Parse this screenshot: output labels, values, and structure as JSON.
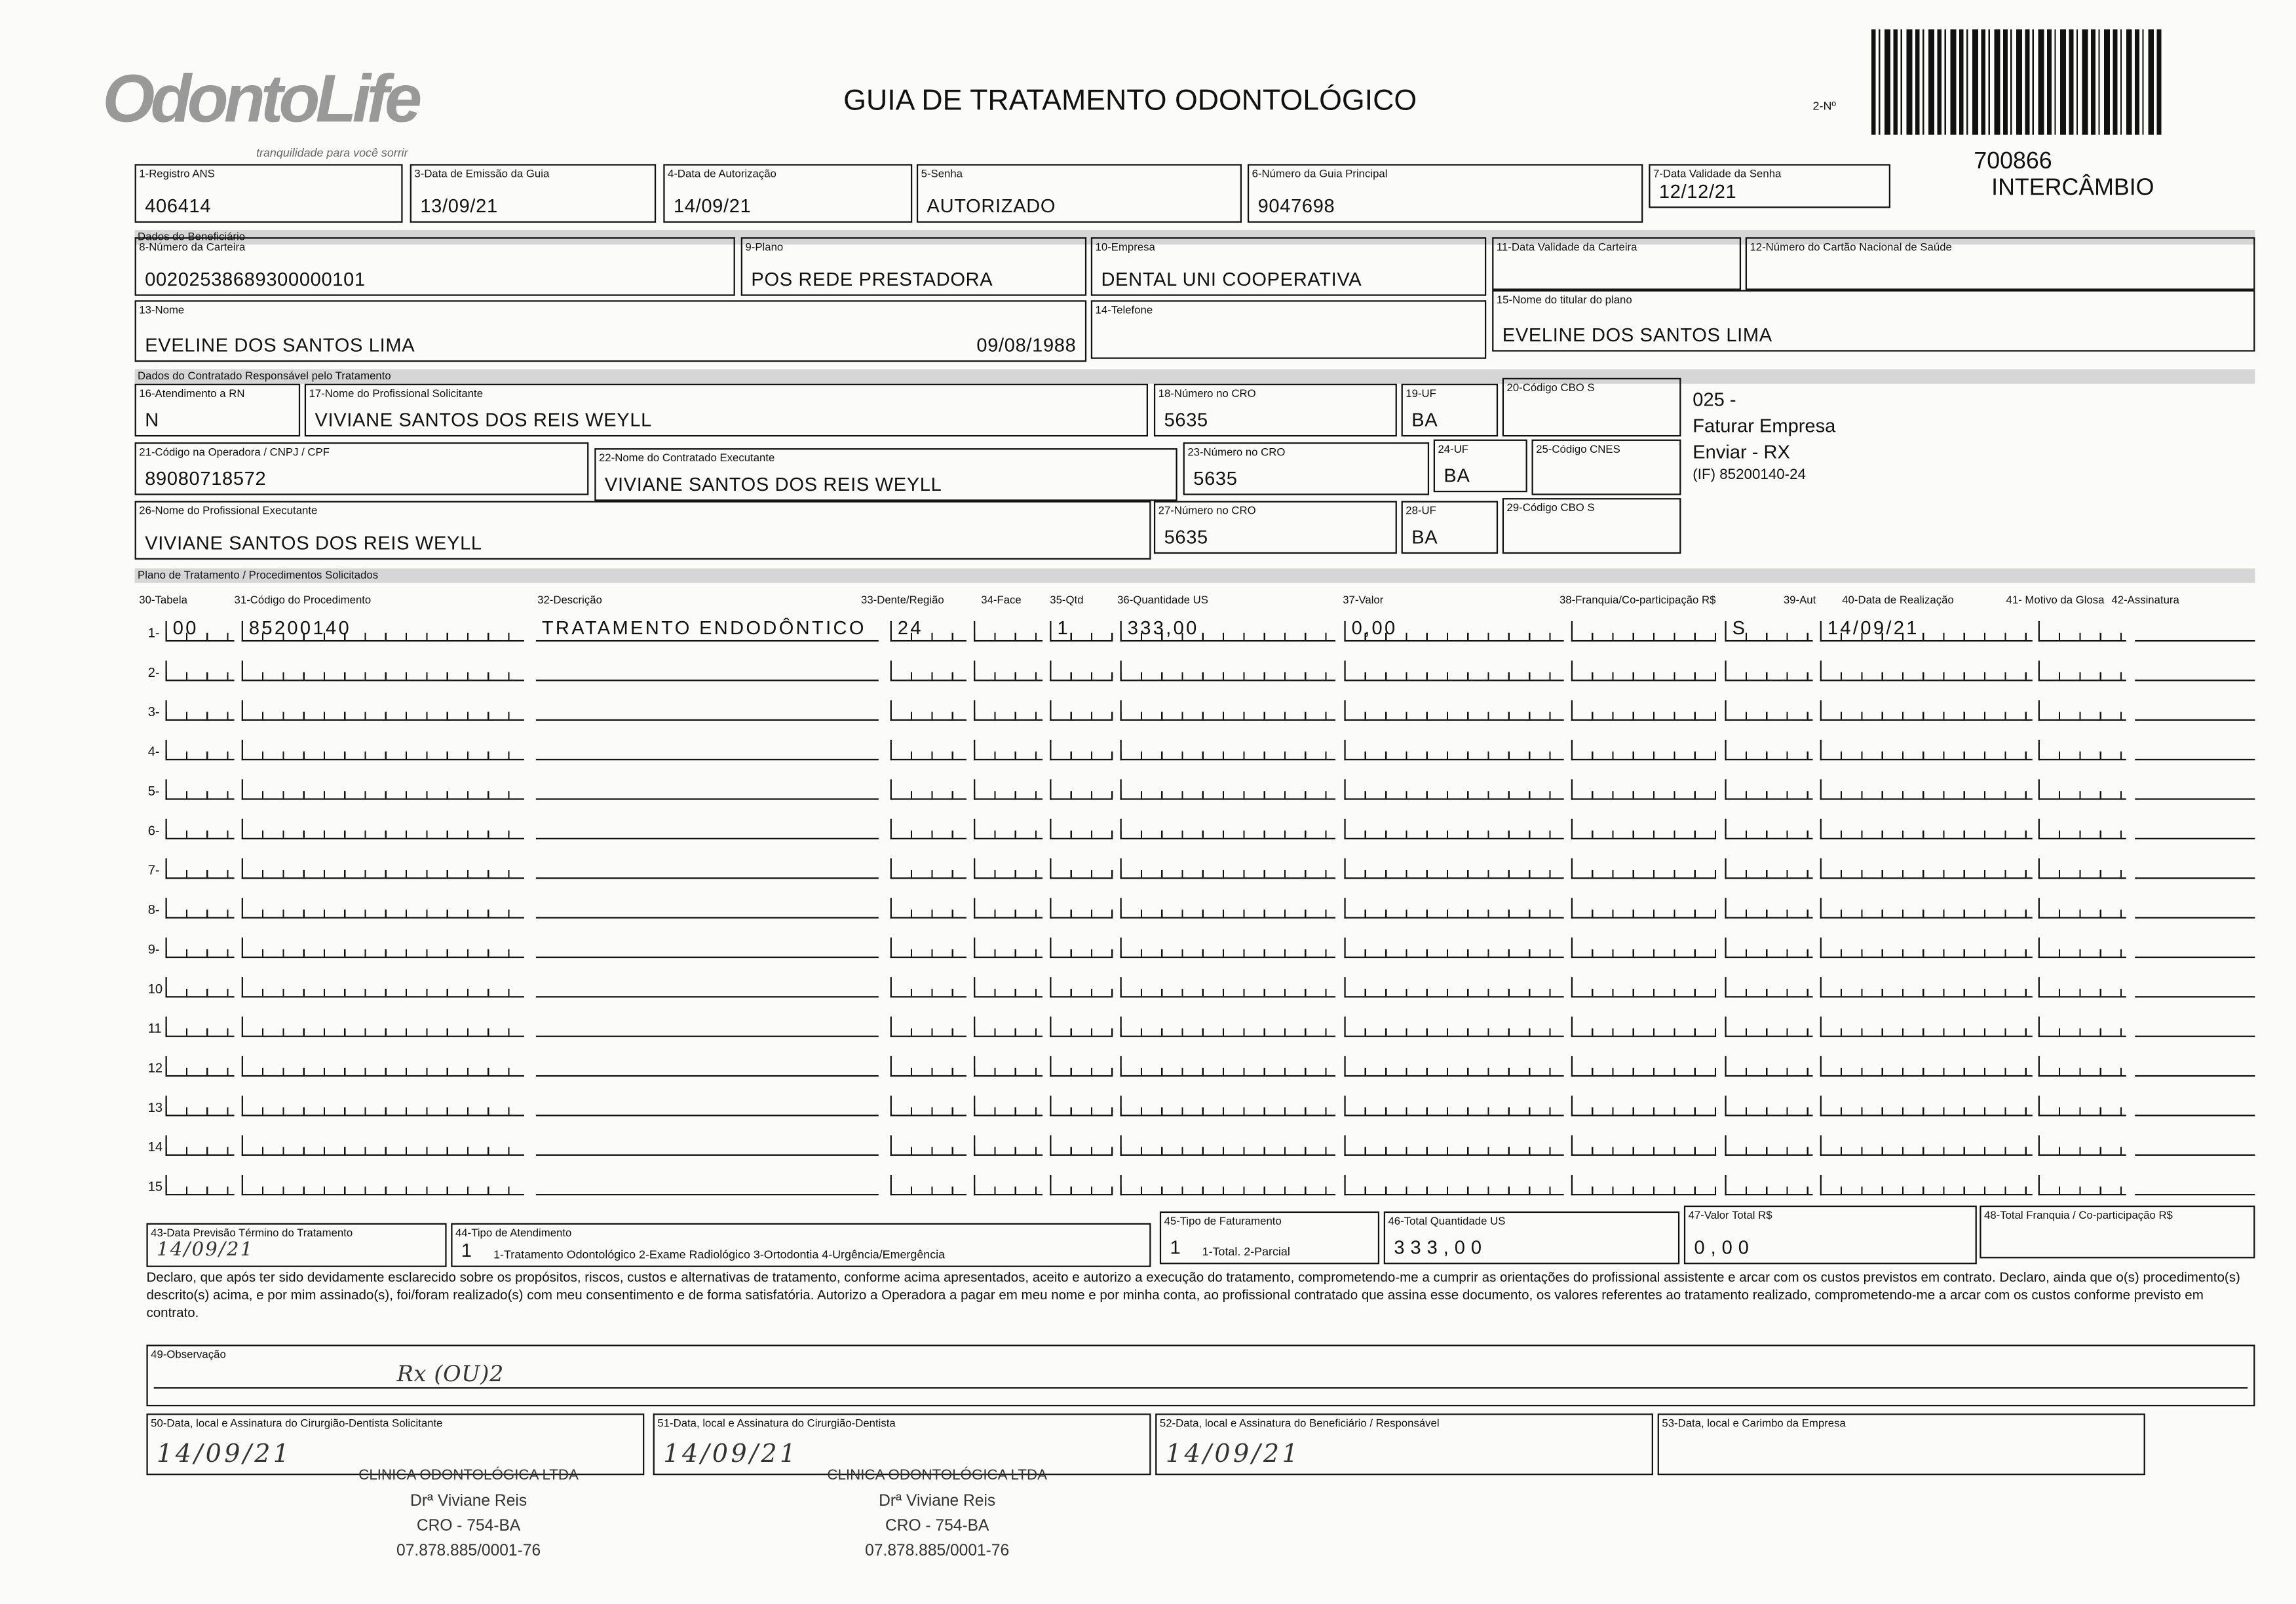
{
  "header": {
    "logo": "OdontoLife",
    "tagline": "tranquilidade para você sorrir",
    "title": "GUIA DE TRATAMENTO ODONTOLÓGICO",
    "number_label": "2-Nº",
    "code": "700866",
    "exchange": "INTERCÂMBIO"
  },
  "sections": [
    "Dados do Beneficiário",
    "Dados do Contratado Responsável pelo Tratamento",
    "Plano de Tratamento / Procedimentos Solicitados"
  ],
  "fields": [
    {
      "label": "1-Registro ANS",
      "value": "406414"
    },
    {
      "label": "3-Data de Emissão da Guia",
      "value": "13/09/21"
    },
    {
      "label": "4-Data de Autorização",
      "value": "14/09/21"
    },
    {
      "label": "5-Senha",
      "value": "AUTORIZADO"
    },
    {
      "label": "6-Número da Guia Principal",
      "value": "9047698"
    },
    {
      "label": "7-Data Validade da Senha",
      "value": "12/12/21"
    },
    {
      "label": "8-Número da Carteira",
      "value": "00202538689300000101"
    },
    {
      "label": "9-Plano",
      "value": "POS REDE PRESTADORA"
    },
    {
      "label": "10-Empresa",
      "value": "DENTAL UNI  COOPERATIVA"
    },
    {
      "label": "11-Data Validade da Carteira"
    },
    {
      "label": "12-Número do Cartão Nacional de Saúde"
    },
    {
      "label": "13-Nome",
      "value": "EVELINE DOS SANTOS LIMA",
      "extra": "09/08/1988"
    },
    {
      "label": "14-Telefone"
    },
    {
      "label": "15-Nome do titular do plano",
      "value": "EVELINE DOS SANTOS LIMA"
    },
    {
      "label": "16-Atendimento a RN",
      "value": "N"
    },
    {
      "label": "17-Nome do Profissional Solicitante",
      "value": "VIVIANE SANTOS DOS REIS WEYLL"
    },
    {
      "label": "18-Número no CRO",
      "value": "5635"
    },
    {
      "label": "19-UF",
      "value": "BA"
    },
    {
      "label": "20-Código CBO S"
    },
    {
      "label": "21-Código na Operadora / CNPJ / CPF",
      "value": "89080718572"
    },
    {
      "label": "22-Nome do Contratado Executante",
      "value": "VIVIANE SANTOS DOS REIS WEYLL"
    },
    {
      "label": "23-Número no CRO",
      "value": "5635"
    },
    {
      "label": "24-UF",
      "value": "BA"
    },
    {
      "label": "25-Código CNES"
    },
    {
      "label": "26-Nome do Profissional Executante",
      "value": "VIVIANE SANTOS DOS REIS WEYLL"
    },
    {
      "label": "27-Número no CRO",
      "value": "5635"
    },
    {
      "label": "28-UF",
      "value": "BA"
    },
    {
      "label": "29-Código CBO S"
    }
  ],
  "side_notes": [
    "025 -",
    "Faturar Empresa",
    "Enviar - RX",
    "(IF) 85200140-24"
  ],
  "procedures": {
    "columns": [
      "30-Tabela",
      "31-Código do Procedimento",
      "32-Descrição",
      "33-Dente/Região",
      "34-Face",
      "35-Qtd",
      "36-Quantidade US",
      "37-Valor",
      "38-Franquia/Co-participação R$",
      "39-Aut",
      "40-Data de Realização",
      "41- Motivo da Glosa",
      "42-Assinatura"
    ],
    "rows": [
      {
        "number": "1-",
        "cells": {
          "0": "00",
          "1": "85200140",
          "2": "TRATAMENTO ENDODÔNTICO",
          "3": "24",
          "5": "1",
          "6": "333,00",
          "7": "0,00",
          "9": "S",
          "10": "14/09/21"
        }
      },
      {
        "number": "2-"
      },
      {
        "number": "3-"
      },
      {
        "number": "4-"
      },
      {
        "number": "5-"
      },
      {
        "number": "6-"
      },
      {
        "number": "7-"
      },
      {
        "number": "8-"
      },
      {
        "number": "9-"
      },
      {
        "number": "10"
      },
      {
        "number": "11"
      },
      {
        "number": "12"
      },
      {
        "number": "13"
      },
      {
        "number": "14"
      },
      {
        "number": "15"
      }
    ]
  },
  "footer_fields": [
    {
      "label": "43-Data Previsão Término do Tratamento",
      "value": "14/09/21"
    },
    {
      "label": "44-Tipo de Atendimento",
      "value": "1",
      "options": "1-Tratamento Odontológico  2-Exame Radiológico  3-Ortodontia  4-Urgência/Emergência"
    },
    {
      "label": "45-Tipo de Faturamento",
      "value": "1",
      "options": "1-Total. 2-Parcial"
    },
    {
      "label": "46-Total Quantidade US",
      "value": "333,00"
    },
    {
      "label": "47-Valor Total R$",
      "value": "0,00"
    },
    {
      "label": "48-Total Franquia / Co-participação R$"
    }
  ],
  "declaration": "Declaro, que após ter sido devidamente esclarecido sobre os propósitos, riscos, custos e alternativas de tratamento, conforme acima apresentados, aceito e autorizo a execução do tratamento, comprometendo-me a cumprir as orientações do profissional assistente e arcar com os custos previstos em contrato. Declaro, ainda que o(s) procedimento(s) descrito(s) acima, e por mim assinado(s), foi/foram realizado(s) com meu consentimento e de forma satisfatória. Autorizo a Operadora a pagar em meu nome e por minha conta, ao profissional contratado que assina esse documento, os valores referentes ao tratamento realizado, comprometendo-me a arcar com os custos conforme previsto em contrato.",
  "observation": {
    "label": "49-Observação",
    "value": "Rx (OU)2"
  },
  "signatures": [
    {
      "label": "50-Data, local e Assinatura do Cirurgião-Dentista Solicitante",
      "value": "14/09/21"
    },
    {
      "label": "51-Data, local e Assinatura do Cirurgião-Dentista",
      "value": "14/09/21"
    },
    {
      "label": "52-Data, local e Assinatura do Beneficiário / Responsável",
      "value": "14/09/21"
    },
    {
      "label": "53-Data, local e Carimbo da Empresa"
    }
  ],
  "stamps": [
    [
      "CLINICA ODONTOLÓGICA LTDA",
      "Drª Viviane Reis",
      "CRO - 754-BA",
      "07.878.885/0001-76"
    ],
    [
      "CLINICA ODONTOLÓGICA LTDA",
      "Drª Viviane Reis",
      "CRO - 754-BA",
      "07.878.885/0001-76"
    ]
  ]
}
